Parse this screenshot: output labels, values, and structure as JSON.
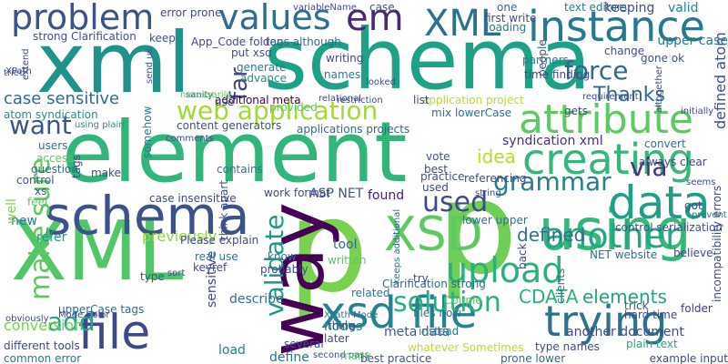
{
  "title": "",
  "words": [
    {
      "text": "element",
      "color": "#31b57b"
    },
    {
      "text": "xml",
      "color": "#21918c"
    },
    {
      "text": "schema",
      "color": "#1fa187"
    },
    {
      "text": "XML",
      "color": "#52c569"
    },
    {
      "text": "p",
      "color": "#7ad151"
    },
    {
      "text": "p",
      "color": "#6ece58"
    },
    {
      "text": "way",
      "color": "#440154"
    },
    {
      "text": "schema",
      "color": "#3b528b"
    },
    {
      "text": "using",
      "color": "#35b779"
    },
    {
      "text": "trying",
      "color": "#2c728e"
    },
    {
      "text": "XSD",
      "color": "#5ec962"
    },
    {
      "text": "xsd file",
      "color": "#26828e"
    },
    {
      "text": "creating",
      "color": "#35b779"
    },
    {
      "text": "attribute",
      "color": "#5ec962"
    },
    {
      "text": "instance",
      "color": "#2a788e"
    },
    {
      "text": "data",
      "color": "#1f9e89"
    },
    {
      "text": "XML",
      "color": "#2d708e"
    },
    {
      "text": "values",
      "color": "#2e6e8e"
    },
    {
      "text": "problem",
      "color": "#3b528b"
    },
    {
      "text": "file",
      "color": "#3e4989"
    },
    {
      "text": "em",
      "color": "#482878"
    },
    {
      "text": "another",
      "color": "#22a884"
    },
    {
      "text": "upload",
      "color": "#2ab07f"
    },
    {
      "text": "web application",
      "color": "#a0da39"
    },
    {
      "text": "solution",
      "color": "#29af7f"
    },
    {
      "text": "grammar",
      "color": "#287d8e"
    },
    {
      "text": "force",
      "color": "#31688e"
    },
    {
      "text": "add",
      "color": "#20a386"
    },
    {
      "text": "validate",
      "color": "#1f988b"
    },
    {
      "text": "want",
      "color": "#39568c"
    },
    {
      "text": "make sure",
      "color": "#5ec962"
    },
    {
      "text": "used",
      "color": "#3e4a89"
    },
    {
      "text": "CDATA",
      "color": "#2ab07f"
    },
    {
      "text": "elements",
      "color": "#20a486"
    },
    {
      "text": "Thanks",
      "color": "#31688e"
    },
    {
      "text": "far",
      "color": "#414487"
    },
    {
      "text": "idea",
      "color": "#b5de2b"
    },
    {
      "text": "defined",
      "color": "#2c728e"
    },
    {
      "text": "defined atom",
      "color": "#3b528b"
    },
    {
      "text": "via",
      "color": "#46337e"
    },
    {
      "text": "case sensitive",
      "color": "#2e6d8e"
    },
    {
      "text": "atom syndication",
      "color": "#21918c"
    },
    {
      "text": "syndication xml",
      "color": "#472d7b"
    },
    {
      "text": "sensitive",
      "color": "#3f4788"
    },
    {
      "text": "another document",
      "color": "#3e4a89"
    },
    {
      "text": "meta data",
      "color": "#38598c"
    },
    {
      "text": "load",
      "color": "#287c8e"
    },
    {
      "text": "conversion",
      "color": "#7ad151"
    },
    {
      "text": "nodes",
      "color": "#25848e"
    },
    {
      "text": "files now",
      "color": "#2c738e"
    },
    {
      "text": "instead",
      "color": "#26818e"
    },
    {
      "text": "previously",
      "color": "#8fd744"
    },
    {
      "text": "tool",
      "color": "#31688e"
    },
    {
      "text": "ASP NET",
      "color": "#3b528b"
    },
    {
      "text": "found",
      "color": "#481b6d"
    },
    {
      "text": "refer",
      "color": "#1f958b"
    },
    {
      "text": "new",
      "color": "#297a8e"
    },
    {
      "text": "well",
      "color": "#7fd34e"
    },
    {
      "text": "describe",
      "color": "#306a8e"
    },
    {
      "text": "define",
      "color": "#2e6f8e"
    },
    {
      "text": "keeping",
      "color": "#3e4989"
    },
    {
      "text": "valid",
      "color": "#23888e"
    },
    {
      "text": "upper case",
      "color": "#2a788e"
    },
    {
      "text": "gone ok",
      "color": "#3b528b"
    },
    {
      "text": "convert",
      "color": "#2c728e"
    },
    {
      "text": "always clear",
      "color": "#3e4a89"
    },
    {
      "text": "believe",
      "color": "#3f4788"
    },
    {
      "text": "folder",
      "color": "#443983"
    },
    {
      "text": "plain text",
      "color": "#22a785"
    },
    {
      "text": "NET website",
      "color": "#2d708e"
    },
    {
      "text": "application project",
      "color": "#b8de29"
    },
    {
      "text": "applications projects",
      "color": "#31688e"
    },
    {
      "text": "content generators",
      "color": "#3b528b"
    },
    {
      "text": "additional meta",
      "color": "#440154"
    },
    {
      "text": "App_Code folder",
      "color": "#3e4a89"
    },
    {
      "text": "tags although",
      "color": "#31688e"
    },
    {
      "text": "put xsd",
      "color": "#3b528b"
    },
    {
      "text": "generate",
      "color": "#2a788e"
    },
    {
      "text": "advance",
      "color": "#21918c"
    },
    {
      "text": "names",
      "color": "#26828e"
    },
    {
      "text": "writing",
      "color": "#3e4a89"
    },
    {
      "text": "strong Clarification",
      "color": "#3b528b"
    },
    {
      "text": "Clarification strong",
      "color": "#31688e"
    },
    {
      "text": "text editors",
      "color": "#2a788e"
    },
    {
      "text": "mix lowerCase",
      "color": "#2c728e"
    },
    {
      "text": "upperCase tags",
      "color": "#31688e"
    },
    {
      "text": "different tools",
      "color": "#3e4a89"
    },
    {
      "text": "common error",
      "color": "#2a788e"
    },
    {
      "text": "whatever Sometimes",
      "color": "#b8de29"
    },
    {
      "text": "prone lower",
      "color": "#31688e"
    },
    {
      "text": "best practice",
      "color": "#3b528b"
    },
    {
      "text": "type names",
      "color": "#3e4a89"
    },
    {
      "text": "think apart",
      "color": "#3b528b"
    },
    {
      "text": "somehow",
      "color": "#2a788e"
    },
    {
      "text": "lower upper",
      "color": "#2c728e"
    },
    {
      "text": "work format",
      "color": "#3e4a89"
    },
    {
      "text": "error prone",
      "color": "#3e4a89"
    },
    {
      "text": "case",
      "color": "#3b528b"
    },
    {
      "text": "one",
      "color": "#31688e"
    },
    {
      "text": "first write",
      "color": "#3e4a89"
    },
    {
      "text": "loading",
      "color": "#2a788e"
    },
    {
      "text": "keep",
      "color": "#3b528b"
    },
    {
      "text": "used",
      "color": "#3e4a89"
    },
    {
      "text": "users",
      "color": "#2c728e"
    },
    {
      "text": "access",
      "color": "#5ec962"
    },
    {
      "text": "question",
      "color": "#31688e"
    },
    {
      "text": "control",
      "color": "#3b528b"
    },
    {
      "text": "tags",
      "color": "#3e4a89"
    },
    {
      "text": "feel",
      "color": "#5ec962"
    },
    {
      "text": "xs",
      "color": "#3b528b"
    },
    {
      "text": "make",
      "color": "#3e4a89"
    },
    {
      "text": "using plain",
      "color": "#21918c"
    },
    {
      "text": "comments",
      "color": "#3e4a89"
    },
    {
      "text": "case insensitive",
      "color": "#3e4a89"
    },
    {
      "text": "Please explain",
      "color": "#3e4a89"
    },
    {
      "text": "real use",
      "color": "#2a788e"
    },
    {
      "text": "keyref",
      "color": "#3e4a89"
    },
    {
      "text": "sort",
      "color": "#3e4a89"
    },
    {
      "text": "type",
      "color": "#3b528b"
    },
    {
      "text": "know",
      "color": "#2c728e"
    },
    {
      "text": "probably",
      "color": "#3e4a89"
    },
    {
      "text": "XPath Mode",
      "color": "#2a788e"
    },
    {
      "text": "written",
      "color": "#5ec962"
    },
    {
      "text": "contains",
      "color": "#2a788e"
    },
    {
      "text": "vote",
      "color": "#3b528b"
    },
    {
      "text": "best",
      "color": "#3e4a89"
    },
    {
      "text": "practice",
      "color": "#3b528b"
    },
    {
      "text": "referencing",
      "color": "#3e4a89"
    },
    {
      "text": "string",
      "color": "#3e4a89"
    },
    {
      "text": "keeps additional",
      "color": "#2c728e"
    },
    {
      "text": "try",
      "color": "#3b528b"
    },
    {
      "text": "Couple",
      "color": "#5ec962"
    },
    {
      "text": "related",
      "color": "#2a788e"
    },
    {
      "text": "thing",
      "color": "#3e4a89"
    },
    {
      "text": "later",
      "color": "#3e4a89"
    },
    {
      "text": "several",
      "color": "#3b528b"
    },
    {
      "text": "second pass",
      "color": "#3e4a89"
    },
    {
      "text": "many",
      "color": "#5ec962"
    },
    {
      "text": "clients",
      "color": "#2a788e"
    },
    {
      "text": "back",
      "color": "#3e4a89"
    },
    {
      "text": "hard time",
      "color": "#3e4a89"
    },
    {
      "text": "trick",
      "color": "#3b528b"
    },
    {
      "text": "seems",
      "color": "#3e4a89"
    },
    {
      "text": "got",
      "color": "#3e4a89"
    },
    {
      "text": "prevent",
      "color": "#2a788e"
    },
    {
      "text": "incompatibility errors",
      "color": "#3e4a89"
    },
    {
      "text": "example input",
      "color": "#3e4a89"
    },
    {
      "text": "control serialization",
      "color": "#3b528b"
    },
    {
      "text": "Mode Color",
      "color": "#3e4a89"
    },
    {
      "text": "obviously",
      "color": "#3e4a89"
    },
    {
      "text": "gets",
      "color": "#3e4a89"
    },
    {
      "text": "change",
      "color": "#3e4a89"
    },
    {
      "text": "people",
      "color": "#3b528b"
    },
    {
      "text": "partners",
      "color": "#2a788e"
    },
    {
      "text": "time finding",
      "color": "#3e4a89"
    },
    {
      "text": "requirement",
      "color": "#3e4a89"
    },
    {
      "text": "initially",
      "color": "#3e4a89"
    },
    {
      "text": "altogether",
      "color": "#3e4a89"
    },
    {
      "text": "looked",
      "color": "#3e4a89"
    },
    {
      "text": "relational",
      "color": "#3e4a89"
    },
    {
      "text": "provided",
      "color": "#5ec962"
    },
    {
      "text": "restriction",
      "color": "#3e4a89"
    },
    {
      "text": "list",
      "color": "#3e4a89"
    },
    {
      "text": "variableName",
      "color": "#3e4a89"
    },
    {
      "text": "XPath",
      "color": "#3e4a89"
    },
    {
      "text": "tried",
      "color": "#3e4a89"
    },
    {
      "text": "extend",
      "color": "#3e4a89"
    },
    {
      "text": "send us",
      "color": "#3e4a89"
    },
    {
      "text": "sanity",
      "color": "#3e4a89"
    },
    {
      "text": "use",
      "color": "#3e4a89"
    },
    {
      "text": "necessarily",
      "color": "#5ec962"
    }
  ]
}
